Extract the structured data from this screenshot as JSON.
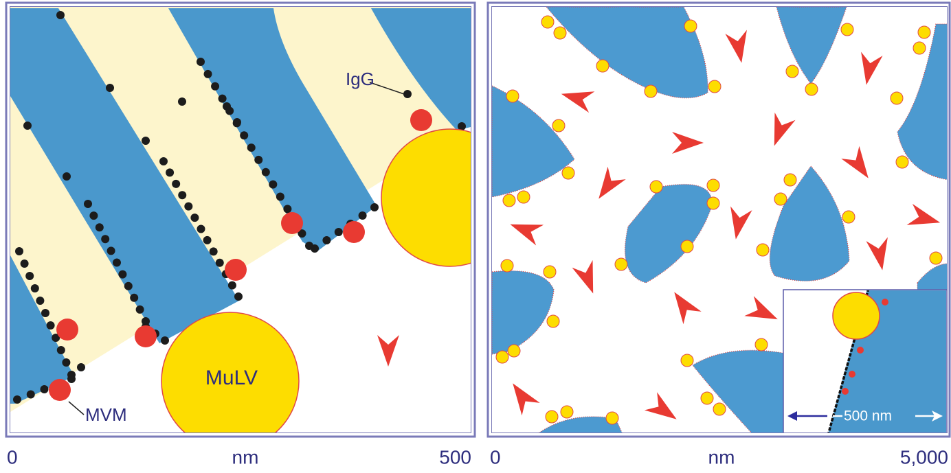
{
  "left_panel": {
    "labels": {
      "igg": "IgG",
      "mvm": "MVM",
      "mulv": "MuLV"
    },
    "axis": {
      "start": "0",
      "unit": "nm",
      "end": "500"
    }
  },
  "right_panel": {
    "axis": {
      "start": "0",
      "unit": "nm",
      "end": "5,000"
    },
    "inset": {
      "scale_bar": "500 nm"
    }
  }
}
